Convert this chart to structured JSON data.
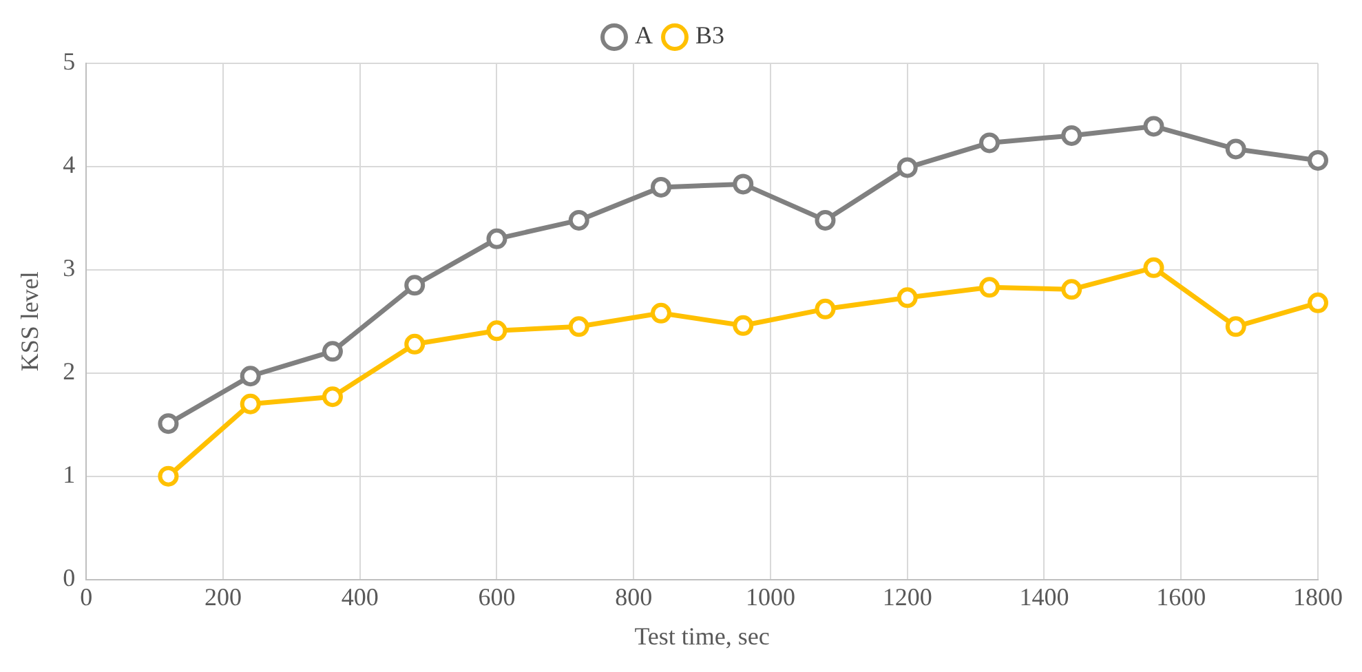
{
  "chart_data": {
    "type": "line",
    "xlabel": "Test time, sec",
    "ylabel": "KSS level",
    "x": [
      120,
      240,
      360,
      480,
      600,
      720,
      840,
      960,
      1080,
      1200,
      1320,
      1440,
      1560,
      1680,
      1800
    ],
    "series": [
      {
        "name": "A",
        "color": "#808080",
        "values": [
          1.51,
          1.97,
          2.21,
          2.85,
          3.3,
          3.48,
          3.8,
          3.83,
          3.48,
          3.99,
          4.23,
          4.3,
          4.39,
          4.17,
          4.06
        ]
      },
      {
        "name": "B3",
        "color": "#ffc000",
        "values": [
          1.0,
          1.7,
          1.77,
          2.28,
          2.41,
          2.45,
          2.58,
          2.46,
          2.62,
          2.73,
          2.83,
          2.81,
          3.02,
          2.45,
          2.68
        ]
      }
    ],
    "xlim": [
      0,
      1800
    ],
    "xticks": [
      0,
      200,
      400,
      600,
      800,
      1000,
      1200,
      1400,
      1600,
      1800
    ],
    "ylim": [
      0,
      5
    ],
    "yticks": [
      0,
      1,
      2,
      3,
      4,
      5
    ],
    "grid": true,
    "legend": "top",
    "marker": "circle",
    "line_style": "solid"
  }
}
